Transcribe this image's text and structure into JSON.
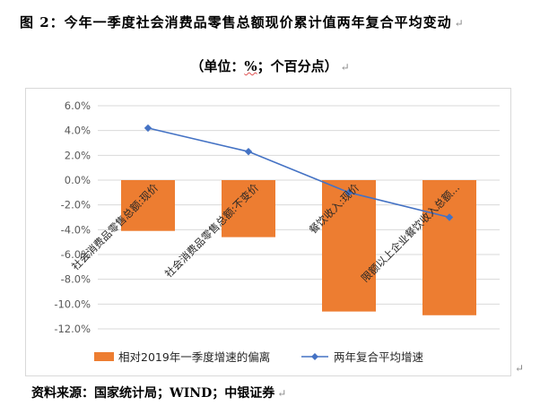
{
  "title": "图 2：今年一季度社会消费品零售总额现价累计值两年复合平均变动",
  "subtitle": {
    "prefix": "（单位：",
    "unit": "%",
    "suffix": "；个百分点）"
  },
  "source": "资料来源：国家统计局；WIND；中银证券",
  "para_mark": "↵",
  "colors": {
    "bar": "#ED7D31",
    "line": "#4472C4",
    "grid": "#D9D9D9",
    "axis_text": "#595959"
  },
  "chart_data": {
    "type": "bar",
    "categories": [
      "社会消费品零售总额:现价",
      "社会消费品零售总额:不变价",
      "餐饮收入:现价",
      "限额以上企业餐饮收入总额..."
    ],
    "series": [
      {
        "name": "相对2019年一季度增速的偏离",
        "type": "bar",
        "values": [
          -4.1,
          -4.6,
          -10.6,
          -10.9
        ]
      },
      {
        "name": "两年复合平均增速",
        "type": "line",
        "values": [
          4.2,
          2.3,
          -1.0,
          -3.0
        ]
      }
    ],
    "yticks": [
      "6.0%",
      "4.0%",
      "2.0%",
      "0.0%",
      "-2.0%",
      "-4.0%",
      "-6.0%",
      "-8.0%",
      "-10.0%",
      "-12.0%"
    ],
    "ylim": [
      -12,
      6
    ],
    "grid": true,
    "legend_position": "bottom"
  }
}
